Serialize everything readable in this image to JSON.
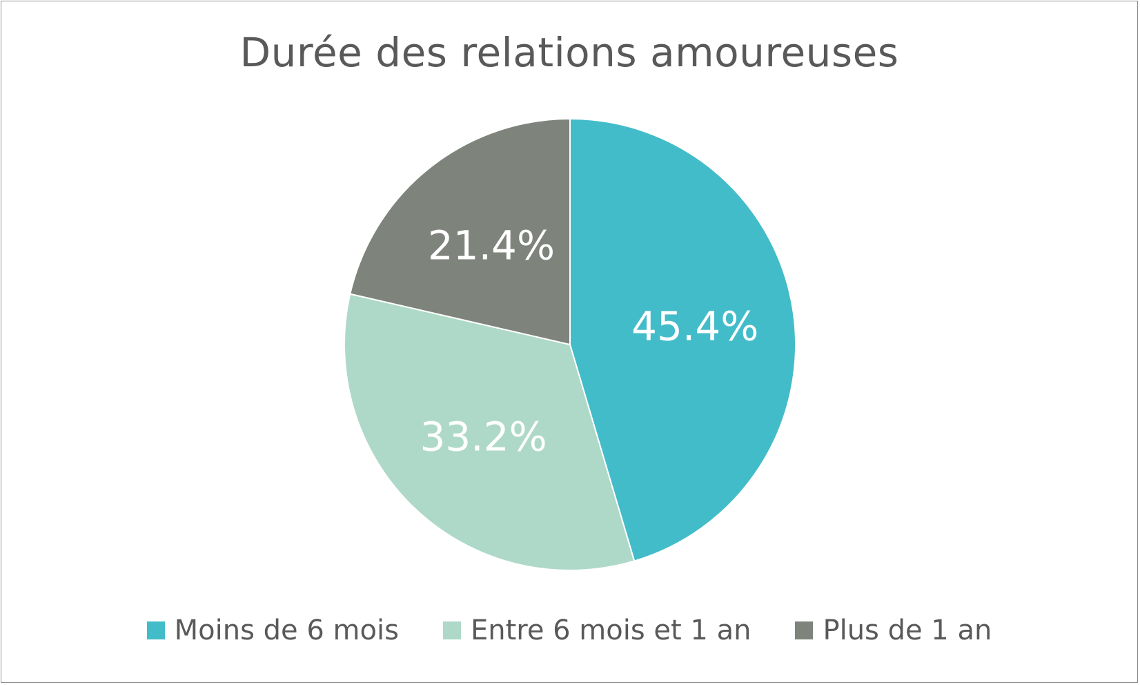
{
  "chart_data": {
    "type": "pie",
    "title": "Durée des relations amoureuses",
    "categories": [
      "Moins de 6 mois",
      "Entre 6 mois et 1 an",
      "Plus de 1 an"
    ],
    "values": [
      45.4,
      33.2,
      21.4
    ],
    "data_labels": [
      "45.4%",
      "33.2%",
      "21.4%"
    ],
    "colors": [
      "#43BCC9",
      "#AED9C8",
      "#7E837B"
    ],
    "start_angle": "12 o'clock",
    "direction": "clockwise",
    "legend_position": "bottom"
  }
}
